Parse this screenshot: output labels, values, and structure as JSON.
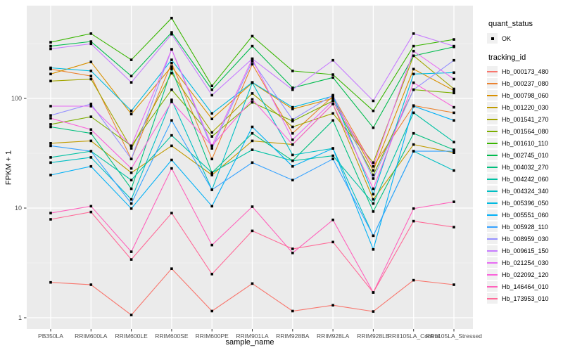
{
  "chart_data": {
    "type": "line",
    "title": "",
    "xlabel": "sample_name",
    "ylabel": "FPKM + 1",
    "y_scale": "log10",
    "ylim": [
      1,
      700
    ],
    "yticks": [
      1,
      10,
      100
    ],
    "minor_grid_values": [
      3.162,
      31.62,
      316.2
    ],
    "grid": "on",
    "legend_position": "right",
    "panel_bg": "#EBEBEB",
    "grid_color": "#FFFFFF",
    "axis_text_color": "#4D4D4D",
    "point_color": "#000000",
    "legend": {
      "quant_status_title": "quant_status",
      "quant_ok_label": "OK",
      "quant_ok_marker": "black-point",
      "tracking_id_title": "tracking_id"
    },
    "categories": [
      "PB350LA",
      "RRIM600LA",
      "RRIM600LE",
      "RRIM600SE",
      "RRIM600PE",
      "RRIM901LA",
      "RRIM928BA",
      "RRIM928LA",
      "RRIM928LE",
      "RRII105LA_Control",
      "RRII105LA_Stressed"
    ],
    "series": [
      {
        "name": "Hb_000173_480",
        "color": "#F8766D",
        "values": [
          2.1,
          2.0,
          1.06,
          2.8,
          1.15,
          2.05,
          1.15,
          1.3,
          1.14,
          2.2,
          2.0
        ]
      },
      {
        "name": "Hb_000237_080",
        "color": "#EA8331",
        "values": [
          185,
          160,
          28,
          210,
          28,
          205,
          48,
          105,
          24,
          86,
          74
        ]
      },
      {
        "name": "Hb_000798_060",
        "color": "#D89000",
        "values": [
          167,
          215,
          72,
          195,
          65,
          139,
          80,
          100,
          22,
          185,
          118
        ]
      },
      {
        "name": "Hb_001220_030",
        "color": "#C09B00",
        "values": [
          39,
          41,
          21,
          37,
          20,
          41,
          38,
          89,
          12,
          38,
          32
        ]
      },
      {
        "name": "Hb_001541_270",
        "color": "#A3A500",
        "values": [
          144,
          150,
          35,
          170,
          49,
          111,
          55,
          73,
          26,
          245,
          122
        ]
      },
      {
        "name": "Hb_001564_080",
        "color": "#7CAE00",
        "values": [
          58,
          68,
          37,
          120,
          45,
          92,
          62,
          95,
          20,
          120,
          112
        ]
      },
      {
        "name": "Hb_001610_110",
        "color": "#39B600",
        "values": [
          325,
          390,
          225,
          540,
          130,
          370,
          178,
          165,
          77,
          300,
          345
        ]
      },
      {
        "name": "Hb_002745_010",
        "color": "#00BB4E",
        "values": [
          300,
          330,
          160,
          400,
          120,
          300,
          125,
          155,
          54,
          245,
          295
        ]
      },
      {
        "name": "Hb_004032_270",
        "color": "#00BF7D",
        "values": [
          55,
          48,
          15,
          185,
          21,
          48,
          27,
          63,
          9.3,
          48,
          34
        ]
      },
      {
        "name": "Hb_004242_060",
        "color": "#00C1A3",
        "values": [
          29,
          33,
          18,
          46,
          21,
          34,
          27,
          30,
          11,
          74,
          40
        ]
      },
      {
        "name": "Hb_004324_340",
        "color": "#00BFC4",
        "values": [
          26,
          29,
          12,
          97,
          14.7,
          139,
          30.5,
          35,
          5.6,
          33,
          22
        ]
      },
      {
        "name": "Hb_005396_050",
        "color": "#00BAE0",
        "values": [
          190,
          178,
          77,
          225,
          73,
          140,
          83,
          105,
          13.4,
          167,
          172
        ]
      },
      {
        "name": "Hb_005551_060",
        "color": "#00B0F6",
        "values": [
          20,
          24,
          9.9,
          27.5,
          10.4,
          55,
          24,
          35,
          4.2,
          85,
          63
        ]
      },
      {
        "name": "Hb_005928_110",
        "color": "#35A2FF",
        "values": [
          37,
          33,
          11,
          63,
          14.7,
          26,
          18,
          28,
          5.6,
          33,
          33
        ]
      },
      {
        "name": "Hb_008959_030",
        "color": "#9590FF",
        "values": [
          70,
          89,
          28,
          280,
          35,
          218,
          64,
          107,
          18.6,
          120,
          223
        ]
      },
      {
        "name": "Hb_009615_150",
        "color": "#C77CFF",
        "values": [
          283,
          315,
          140,
          385,
          107,
          230,
          120,
          223,
          95,
          390,
          300
        ]
      },
      {
        "name": "Hb_021254_030",
        "color": "#E76BF3",
        "values": [
          85,
          85,
          37,
          280,
          37,
          230,
          42,
          95,
          24,
          270,
          150
        ]
      },
      {
        "name": "Hb_022092_120",
        "color": "#FA62DB",
        "values": [
          66,
          52,
          23,
          93,
          37,
          98,
          38,
          89,
          15,
          139,
          83
        ]
      },
      {
        "name": "Hb_146464_010",
        "color": "#FF62BC",
        "values": [
          9.0,
          10.4,
          4.0,
          23,
          4.6,
          10.3,
          3.9,
          7.8,
          1.7,
          9.9,
          11.4
        ]
      },
      {
        "name": "Hb_173953_010",
        "color": "#FF6A98",
        "values": [
          7.9,
          9.2,
          3.4,
          9.0,
          2.5,
          6.2,
          4.25,
          4.9,
          1.7,
          7.6,
          6.7
        ]
      }
    ]
  }
}
